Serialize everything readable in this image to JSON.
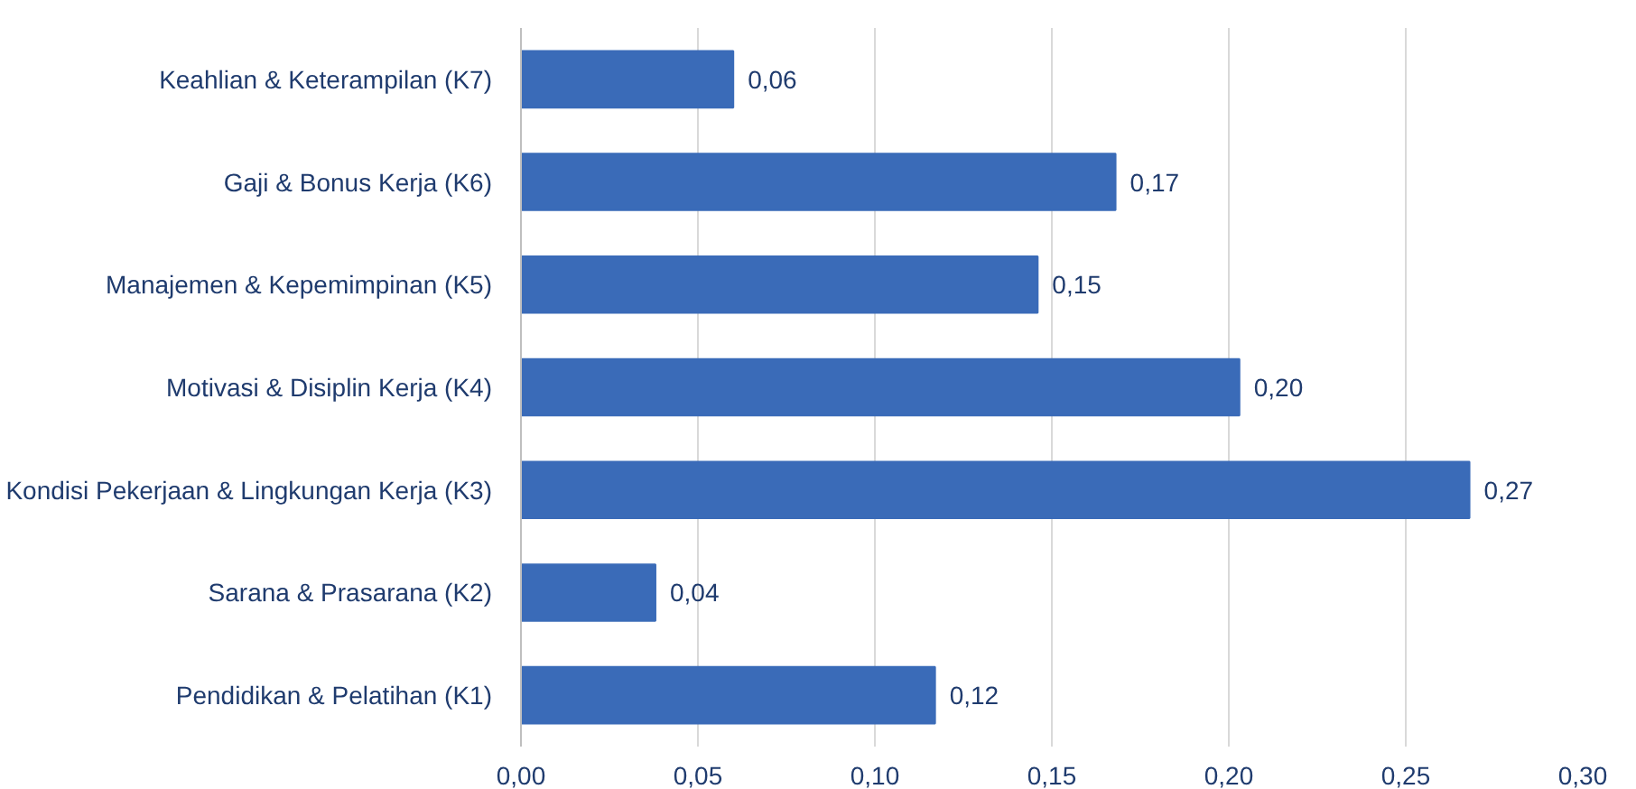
{
  "chart_data": {
    "type": "bar",
    "orientation": "horizontal",
    "categories": [
      "Keahlian & Keterampilan (K7)",
      "Gaji & Bonus Kerja (K6)",
      "Manajemen & Kepemimpinan (K5)",
      "Motivasi & Disiplin Kerja (K4)",
      "Kondisi Pekerjaan & Lingkungan Kerja (K3)",
      "Sarana & Prasarana (K2)",
      "Pendidikan & Pelatihan (K1)"
    ],
    "values": [
      0.06,
      0.168,
      0.146,
      0.203,
      0.268,
      0.038,
      0.117
    ],
    "value_labels": [
      "0,06",
      "0,17",
      "0,15",
      "0,20",
      "0,27",
      "0,04",
      "0,12"
    ],
    "color": "#3a6bb8",
    "xlim": [
      0,
      0.3
    ],
    "xticks": [
      {
        "value": 0,
        "label": "0,00"
      },
      {
        "value": 0.05,
        "label": "0,05"
      },
      {
        "value": 0.1,
        "label": "0,10"
      },
      {
        "value": 0.15,
        "label": "0,15"
      },
      {
        "value": 0.2,
        "label": "0,20"
      },
      {
        "value": 0.25,
        "label": "0,25"
      },
      {
        "value": 0.3,
        "label": "0,30"
      }
    ],
    "grid": "x"
  }
}
